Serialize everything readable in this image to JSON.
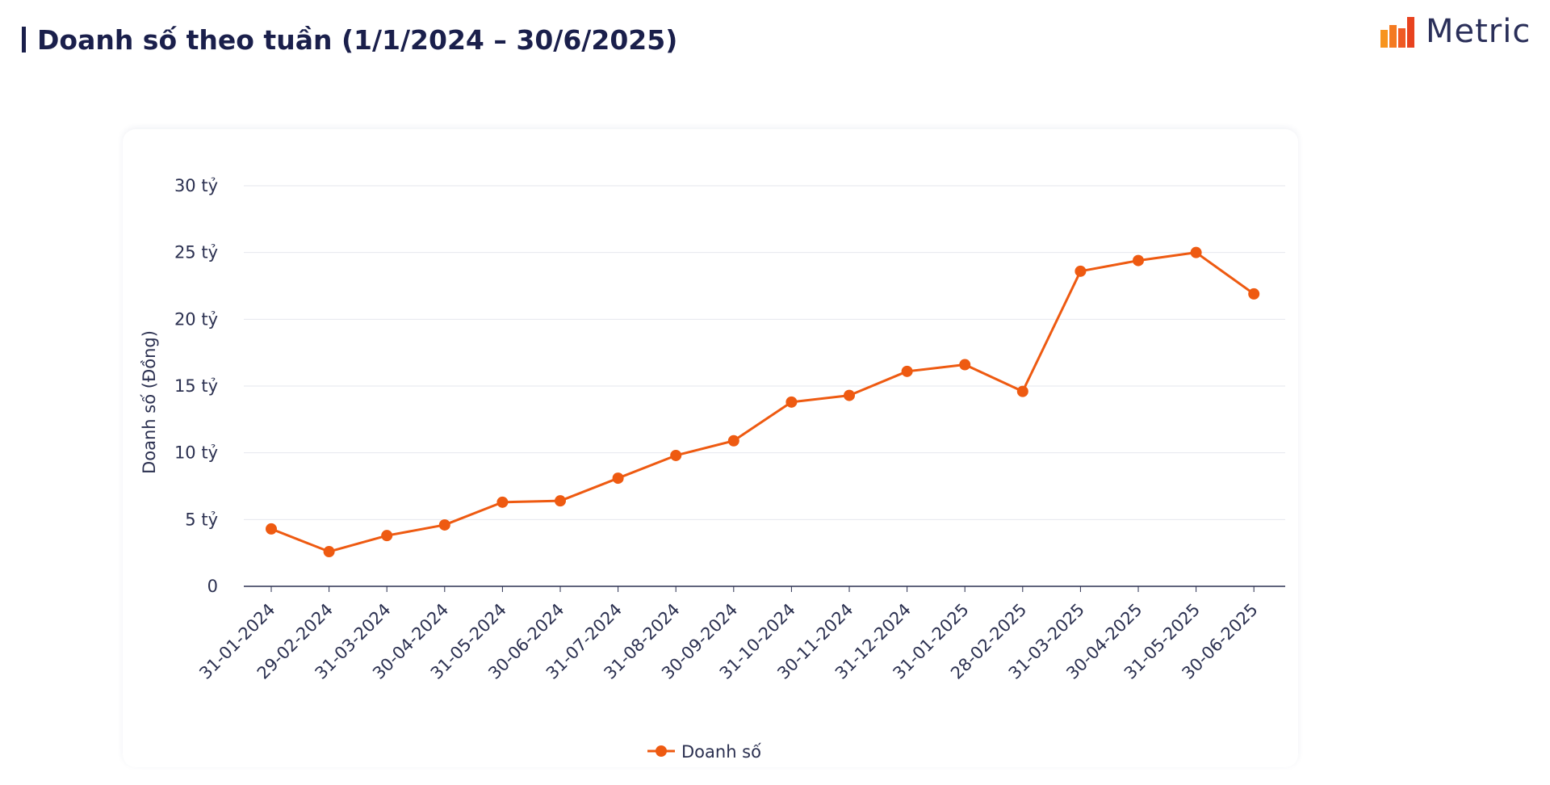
{
  "header": {
    "title": "Doanh số theo tuần (1/1/2024 – 30/6/2025)",
    "brand": "Metric"
  },
  "colors": {
    "series": "#ee5a11",
    "title": "#1a1f4b",
    "grid": "#e6e7ee",
    "axis": "#2b3050"
  },
  "icons": {
    "brand_logo": "bar-chart-logo-icon"
  },
  "chart_data": {
    "type": "line",
    "title": "Doanh số theo tuần (1/1/2024 – 30/6/2025)",
    "xlabel": "",
    "ylabel": "Doanh số (Đồng)",
    "ylim": [
      0,
      30
    ],
    "y_unit": "tỷ",
    "yticks": [
      0,
      5,
      10,
      15,
      20,
      25,
      30
    ],
    "ytick_labels": [
      "0",
      "5 tỷ",
      "10 tỷ",
      "15 tỷ",
      "20 tỷ",
      "25 tỷ",
      "30 tỷ"
    ],
    "grid": true,
    "legend_position": "bottom-center",
    "categories": [
      "31-01-2024",
      "29-02-2024",
      "31-03-2024",
      "30-04-2024",
      "31-05-2024",
      "30-06-2024",
      "31-07-2024",
      "31-08-2024",
      "30-09-2024",
      "31-10-2024",
      "30-11-2024",
      "31-12-2024",
      "31-01-2025",
      "28-02-2025",
      "31-03-2025",
      "30-04-2025",
      "31-05-2025",
      "30-06-2025"
    ],
    "series": [
      {
        "name": "Doanh số",
        "color": "#ee5a11",
        "values": [
          4.3,
          2.6,
          3.8,
          4.6,
          6.3,
          6.4,
          8.1,
          9.8,
          10.9,
          13.8,
          14.3,
          16.1,
          16.6,
          14.6,
          23.6,
          24.4,
          25.0,
          21.9
        ]
      }
    ]
  }
}
